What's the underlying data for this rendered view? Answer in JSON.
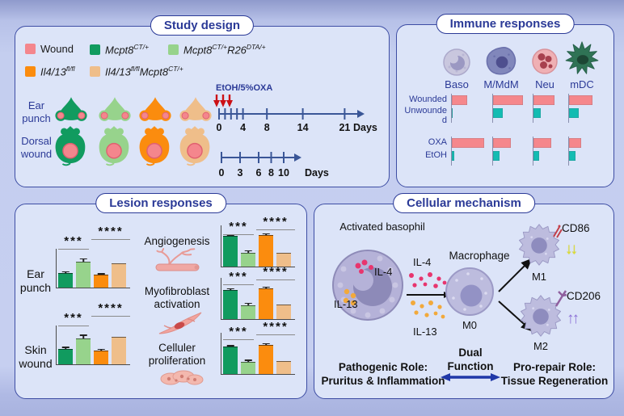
{
  "colors": {
    "navy": "#2B3A97",
    "panel_bg": "#DCE4F8",
    "panel_border": "#3D4DA4",
    "wound_pink": "#F4868D",
    "series": [
      "#119B5F",
      "#97D38C",
      "#FB8C0E",
      "#EFBE8A"
    ],
    "bar_pink": "#F5878C",
    "bar_teal": "#13BCB2",
    "timeline": "#3A5697",
    "treatment_arrow_red": "#CC1016",
    "dual_arrow_blue": "#2038A8"
  },
  "study_design": {
    "title": "Study design",
    "legend": [
      {
        "label": "Wound",
        "color": "#F4868D"
      },
      {
        "base1": "Mcpt8",
        "sup1": "CT/+",
        "color": "#119B5F"
      },
      {
        "base1": "Mcpt8",
        "sup1": "CT/+",
        "base2": "R26",
        "sup2": "DTA/+",
        "color": "#97D38C"
      },
      {
        "base1": "Il4/13",
        "sup1": "fl/fl",
        "color": "#FB8C0E"
      },
      {
        "base1": "Il4/13",
        "sup1": "fl/fl",
        "base2": "Mcpt8",
        "sup2": "CT/+",
        "color": "#EFBE8A"
      }
    ],
    "row1_label": "Ear punch",
    "row2_label": "Dorsal wound",
    "timeline1": {
      "treatment": "EtOH/5%OXA",
      "labels": [
        "0",
        "4",
        "8",
        "14",
        "21"
      ],
      "unit": "Days"
    },
    "timeline2": {
      "labels": [
        "0",
        "3",
        "6",
        "8",
        "10"
      ],
      "unit": "Days"
    }
  },
  "immune_responses": {
    "title": "Immune responses",
    "cells": [
      "Baso",
      "M/MdM",
      "Neu",
      "mDC"
    ],
    "group1_rows": [
      "Wounded",
      "Unwounded"
    ],
    "group2_rows": [
      "OXA",
      "EtOH"
    ]
  },
  "lesion_responses": {
    "title": "Lesion responses",
    "left_charts": [
      {
        "label": "Ear punch"
      },
      {
        "label": "Skin wound"
      }
    ],
    "right_items": [
      {
        "label": "Angiogenesis",
        "icon": "blood-vessel-icon"
      },
      {
        "label": "Myofibroblast activation",
        "icon": "myofibroblast-icon"
      },
      {
        "label": "Celluler proliferation",
        "icon": "proliferating-cells-icon"
      }
    ],
    "sig_pair1": "***",
    "sig_pair2": "****"
  },
  "cellular_mechanism": {
    "title": "Cellular mechanism",
    "basophil_label": "Activated basophil",
    "il4": "IL-4",
    "il13": "IL-13",
    "macrophage_label": "Macrophage",
    "m0": "M0",
    "m1": "M1",
    "m2": "M2",
    "cd86": "CD86",
    "cd206": "CD206",
    "m1_arrows": "↓↓",
    "m2_arrows": "↑↑",
    "dual_line1": "Dual",
    "dual_line2": "Function",
    "pathogenic_line1": "Pathogenic Role:",
    "pathogenic_line2": "Pruritus & Inflammation",
    "prorepair_line1": "Pro-repair Role:",
    "prorepair_line2": "Tissue Regeneration"
  },
  "chart_data": [
    {
      "id": "immune_wound",
      "type": "bar",
      "orientation": "horizontal",
      "categories": [
        "Baso",
        "M/MdM",
        "Neu",
        "mDC"
      ],
      "series": [
        {
          "name": "Wounded",
          "color": "#F5878C",
          "values": [
            42,
            82,
            58,
            64
          ]
        },
        {
          "name": "Unwounded",
          "color": "#13BCB2",
          "values": [
            3,
            27,
            20,
            27
          ]
        }
      ],
      "value_scale": "percent of max bar (no numeric axis shown)",
      "xlim": [
        0,
        100
      ]
    },
    {
      "id": "immune_oxa",
      "type": "bar",
      "orientation": "horizontal",
      "categories": [
        "Baso",
        "M/MdM",
        "Neu",
        "mDC"
      ],
      "series": [
        {
          "name": "OXA",
          "color": "#F5878C",
          "values": [
            89,
            49,
            49,
            33
          ]
        },
        {
          "name": "EtOH",
          "color": "#13BCB2",
          "values": [
            6,
            18,
            16,
            18
          ]
        }
      ],
      "value_scale": "percent of max bar (no numeric axis shown)",
      "xlim": [
        0,
        100
      ]
    },
    {
      "id": "ear_punch",
      "type": "bar",
      "title": "Ear punch",
      "categories": [
        "Mcpt8CT/+",
        "Mcpt8CT/+R26DTA/+",
        "Il4/13fl/fl",
        "Il4/13fl/flMcpt8CT/+"
      ],
      "values": [
        37,
        66,
        33,
        62
      ],
      "errors": [
        5,
        10,
        4,
        0
      ],
      "ylim": [
        0,
        100
      ],
      "significance": [
        {
          "pair": [
            0,
            1
          ],
          "label": "***"
        },
        {
          "pair": [
            2,
            3
          ],
          "label": "****"
        }
      ]
    },
    {
      "id": "skin_wound",
      "type": "bar",
      "title": "Skin wound",
      "categories": [
        "Mcpt8CT/+",
        "Mcpt8CT/+R26DTA/+",
        "Il4/13fl/fl",
        "Il4/13fl/flMcpt8CT/+"
      ],
      "values": [
        40,
        67,
        36,
        70
      ],
      "errors": [
        5,
        10,
        4,
        0
      ],
      "ylim": [
        0,
        100
      ],
      "significance": [
        {
          "pair": [
            0,
            1
          ],
          "label": "***"
        },
        {
          "pair": [
            2,
            3
          ],
          "label": "****"
        }
      ]
    },
    {
      "id": "angiogenesis",
      "type": "bar",
      "title": "Angiogenesis",
      "categories": [
        "Mcpt8CT/+",
        "Mcpt8CT/+R26DTA/+",
        "Il4/13fl/fl",
        "Il4/13fl/flMcpt8CT/+"
      ],
      "values": [
        74,
        34,
        77,
        33
      ],
      "errors": [
        4,
        6,
        4,
        0
      ],
      "ylim": [
        0,
        100
      ],
      "significance": [
        {
          "pair": [
            0,
            1
          ],
          "label": "***"
        },
        {
          "pair": [
            2,
            3
          ],
          "label": "****"
        }
      ]
    },
    {
      "id": "myofibroblast_activation",
      "type": "bar",
      "title": "Myofibroblast activation",
      "categories": [
        "Mcpt8CT/+",
        "Mcpt8CT/+R26DTA/+",
        "Il4/13fl/fl",
        "Il4/13fl/flMcpt8CT/+"
      ],
      "values": [
        71,
        34,
        75,
        36
      ],
      "errors": [
        4,
        6,
        4,
        0
      ],
      "ylim": [
        0,
        100
      ],
      "significance": [
        {
          "pair": [
            0,
            1
          ],
          "label": "***"
        },
        {
          "pair": [
            2,
            3
          ],
          "label": "****"
        }
      ]
    },
    {
      "id": "cellular_proliferation",
      "type": "bar",
      "title": "Celluler proliferation",
      "categories": [
        "Mcpt8CT/+",
        "Mcpt8CT/+R26DTA/+",
        "Il4/13fl/fl",
        "Il4/13fl/flMcpt8CT/+"
      ],
      "values": [
        66,
        29,
        71,
        31
      ],
      "errors": [
        4,
        6,
        4,
        0
      ],
      "ylim": [
        0,
        100
      ],
      "significance": [
        {
          "pair": [
            0,
            1
          ],
          "label": "***"
        },
        {
          "pair": [
            2,
            3
          ],
          "label": "****"
        }
      ]
    }
  ]
}
